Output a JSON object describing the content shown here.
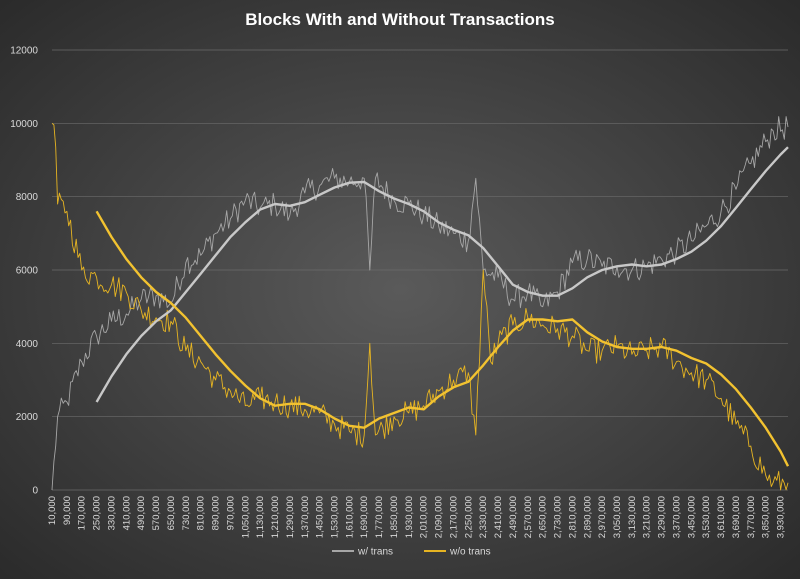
{
  "chart_data": {
    "type": "line",
    "title": "Blocks With and Without Transactions",
    "xlabel": "",
    "ylabel": "",
    "ylim": [
      0,
      12000
    ],
    "yticks": [
      0,
      2000,
      4000,
      6000,
      8000,
      10000,
      12000
    ],
    "grid": true,
    "legend": "bottom",
    "x_start": 10000,
    "x_end": 3970000,
    "x_step": 10000,
    "x_tick_labels": [
      "10,000",
      "90,000",
      "170,000",
      "250,000",
      "330,000",
      "410,000",
      "490,000",
      "570,000",
      "650,000",
      "730,000",
      "810,000",
      "890,000",
      "970,000",
      "1,050,000",
      "1,130,000",
      "1,210,000",
      "1,290,000",
      "1,370,000",
      "1,450,000",
      "1,530,000",
      "1,610,000",
      "1,690,000",
      "1,770,000",
      "1,850,000",
      "1,930,000",
      "2,010,000",
      "2,090,000",
      "2,170,000",
      "2,250,000",
      "2,330,000",
      "2,410,000",
      "2,490,000",
      "2,570,000",
      "2,650,000",
      "2,730,000",
      "2,810,000",
      "2,890,000",
      "2,970,000",
      "3,050,000",
      "3,130,000",
      "3,210,000",
      "3,290,000",
      "3,370,000",
      "3,450,000",
      "3,530,000",
      "3,610,000",
      "3,690,000",
      "3,770,000",
      "3,850,000",
      "3,930,000"
    ],
    "series": [
      {
        "name": "w/ trans",
        "color": "#a6a6a6",
        "key_points": [
          [
            10000,
            0
          ],
          [
            40000,
            2000
          ],
          [
            90000,
            2400
          ],
          [
            170000,
            3500
          ],
          [
            250000,
            4200
          ],
          [
            330000,
            4600
          ],
          [
            410000,
            4800
          ],
          [
            490000,
            5200
          ],
          [
            570000,
            5300
          ],
          [
            650000,
            5100
          ],
          [
            730000,
            6200
          ],
          [
            810000,
            6400
          ],
          [
            890000,
            7000
          ],
          [
            970000,
            7400
          ],
          [
            1050000,
            7900
          ],
          [
            1130000,
            7700
          ],
          [
            1210000,
            7800
          ],
          [
            1290000,
            7500
          ],
          [
            1370000,
            8100
          ],
          [
            1450000,
            8300
          ],
          [
            1530000,
            8500
          ],
          [
            1610000,
            8400
          ],
          [
            1690000,
            8500
          ],
          [
            1720000,
            6000
          ],
          [
            1750000,
            8500
          ],
          [
            1850000,
            7900
          ],
          [
            1930000,
            7800
          ],
          [
            2010000,
            7500
          ],
          [
            2090000,
            7200
          ],
          [
            2170000,
            7000
          ],
          [
            2250000,
            6800
          ],
          [
            2290000,
            8500
          ],
          [
            2330000,
            6000
          ],
          [
            2410000,
            5800
          ],
          [
            2490000,
            5200
          ],
          [
            2570000,
            5400
          ],
          [
            2650000,
            5000
          ],
          [
            2730000,
            5400
          ],
          [
            2810000,
            6200
          ],
          [
            2890000,
            6300
          ],
          [
            2970000,
            6100
          ],
          [
            3050000,
            6100
          ],
          [
            3130000,
            6000
          ],
          [
            3210000,
            6100
          ],
          [
            3290000,
            6300
          ],
          [
            3370000,
            6500
          ],
          [
            3450000,
            6800
          ],
          [
            3530000,
            7200
          ],
          [
            3610000,
            7600
          ],
          [
            3690000,
            8200
          ],
          [
            3770000,
            8900
          ],
          [
            3850000,
            9500
          ],
          [
            3890000,
            9800
          ],
          [
            3970000,
            9900
          ]
        ]
      },
      {
        "name": "w/o trans",
        "color": "#e6b422",
        "key_points": [
          [
            10000,
            10000
          ],
          [
            25000,
            10000
          ],
          [
            40000,
            7800
          ],
          [
            90000,
            7600
          ],
          [
            170000,
            6000
          ],
          [
            250000,
            5800
          ],
          [
            330000,
            5600
          ],
          [
            410000,
            5400
          ],
          [
            490000,
            4900
          ],
          [
            570000,
            4700
          ],
          [
            650000,
            4600
          ],
          [
            730000,
            3800
          ],
          [
            810000,
            3500
          ],
          [
            890000,
            3000
          ],
          [
            970000,
            2700
          ],
          [
            1050000,
            2300
          ],
          [
            1130000,
            2500
          ],
          [
            1210000,
            2400
          ],
          [
            1290000,
            2300
          ],
          [
            1370000,
            2200
          ],
          [
            1450000,
            2100
          ],
          [
            1530000,
            1800
          ],
          [
            1610000,
            1600
          ],
          [
            1690000,
            1500
          ],
          [
            1720000,
            4000
          ],
          [
            1750000,
            1500
          ],
          [
            1850000,
            2000
          ],
          [
            1930000,
            2100
          ],
          [
            2010000,
            2300
          ],
          [
            2090000,
            2700
          ],
          [
            2170000,
            3000
          ],
          [
            2250000,
            3200
          ],
          [
            2290000,
            1500
          ],
          [
            2330000,
            6000
          ],
          [
            2370000,
            3500
          ],
          [
            2410000,
            4000
          ],
          [
            2490000,
            4500
          ],
          [
            2570000,
            4700
          ],
          [
            2650000,
            4500
          ],
          [
            2730000,
            4400
          ],
          [
            2810000,
            4200
          ],
          [
            2890000,
            3800
          ],
          [
            2970000,
            3800
          ],
          [
            3050000,
            3900
          ],
          [
            3130000,
            3700
          ],
          [
            3210000,
            3800
          ],
          [
            3290000,
            3900
          ],
          [
            3370000,
            3500
          ],
          [
            3450000,
            3200
          ],
          [
            3530000,
            3000
          ],
          [
            3610000,
            2500
          ],
          [
            3690000,
            1800
          ],
          [
            3770000,
            1200
          ],
          [
            3850000,
            400
          ],
          [
            3890000,
            200
          ],
          [
            3970000,
            200
          ]
        ]
      },
      {
        "name": "",
        "color": "#c8c8c8",
        "key_points": [
          [
            250000,
            2400
          ],
          [
            330000,
            3100
          ],
          [
            410000,
            3700
          ],
          [
            490000,
            4200
          ],
          [
            570000,
            4600
          ],
          [
            650000,
            4900
          ],
          [
            730000,
            5400
          ],
          [
            810000,
            5900
          ],
          [
            890000,
            6400
          ],
          [
            970000,
            6900
          ],
          [
            1050000,
            7300
          ],
          [
            1130000,
            7650
          ],
          [
            1210000,
            7800
          ],
          [
            1290000,
            7750
          ],
          [
            1370000,
            7850
          ],
          [
            1450000,
            8050
          ],
          [
            1530000,
            8250
          ],
          [
            1610000,
            8380
          ],
          [
            1690000,
            8400
          ],
          [
            1770000,
            8150
          ],
          [
            1850000,
            7950
          ],
          [
            1930000,
            7800
          ],
          [
            2010000,
            7600
          ],
          [
            2090000,
            7300
          ],
          [
            2170000,
            7100
          ],
          [
            2250000,
            6950
          ],
          [
            2330000,
            6600
          ],
          [
            2410000,
            6100
          ],
          [
            2490000,
            5600
          ],
          [
            2570000,
            5400
          ],
          [
            2650000,
            5300
          ],
          [
            2730000,
            5300
          ],
          [
            2810000,
            5500
          ],
          [
            2890000,
            5800
          ],
          [
            2970000,
            6000
          ],
          [
            3050000,
            6100
          ],
          [
            3130000,
            6150
          ],
          [
            3210000,
            6100
          ],
          [
            3290000,
            6150
          ],
          [
            3370000,
            6300
          ],
          [
            3450000,
            6500
          ],
          [
            3530000,
            6800
          ],
          [
            3610000,
            7200
          ],
          [
            3690000,
            7700
          ],
          [
            3770000,
            8200
          ],
          [
            3850000,
            8700
          ],
          [
            3930000,
            9150
          ],
          [
            3970000,
            9350
          ]
        ]
      },
      {
        "name": "",
        "color": "#f2c230",
        "key_points": [
          [
            250000,
            7600
          ],
          [
            330000,
            6900
          ],
          [
            410000,
            6300
          ],
          [
            490000,
            5800
          ],
          [
            570000,
            5400
          ],
          [
            650000,
            5100
          ],
          [
            730000,
            4700
          ],
          [
            810000,
            4200
          ],
          [
            890000,
            3700
          ],
          [
            970000,
            3250
          ],
          [
            1050000,
            2850
          ],
          [
            1130000,
            2500
          ],
          [
            1210000,
            2300
          ],
          [
            1290000,
            2350
          ],
          [
            1370000,
            2350
          ],
          [
            1450000,
            2200
          ],
          [
            1530000,
            1950
          ],
          [
            1610000,
            1750
          ],
          [
            1690000,
            1700
          ],
          [
            1770000,
            1950
          ],
          [
            1850000,
            2100
          ],
          [
            1930000,
            2250
          ],
          [
            2010000,
            2200
          ],
          [
            2090000,
            2550
          ],
          [
            2170000,
            2800
          ],
          [
            2250000,
            2950
          ],
          [
            2330000,
            3400
          ],
          [
            2410000,
            3900
          ],
          [
            2490000,
            4350
          ],
          [
            2570000,
            4650
          ],
          [
            2650000,
            4650
          ],
          [
            2730000,
            4600
          ],
          [
            2810000,
            4650
          ],
          [
            2890000,
            4300
          ],
          [
            2970000,
            4050
          ],
          [
            3050000,
            3900
          ],
          [
            3130000,
            3850
          ],
          [
            3210000,
            3850
          ],
          [
            3290000,
            3900
          ],
          [
            3370000,
            3800
          ],
          [
            3450000,
            3600
          ],
          [
            3530000,
            3450
          ],
          [
            3610000,
            3150
          ],
          [
            3690000,
            2750
          ],
          [
            3770000,
            2250
          ],
          [
            3850000,
            1700
          ],
          [
            3930000,
            1050
          ],
          [
            3970000,
            650
          ]
        ]
      }
    ]
  }
}
